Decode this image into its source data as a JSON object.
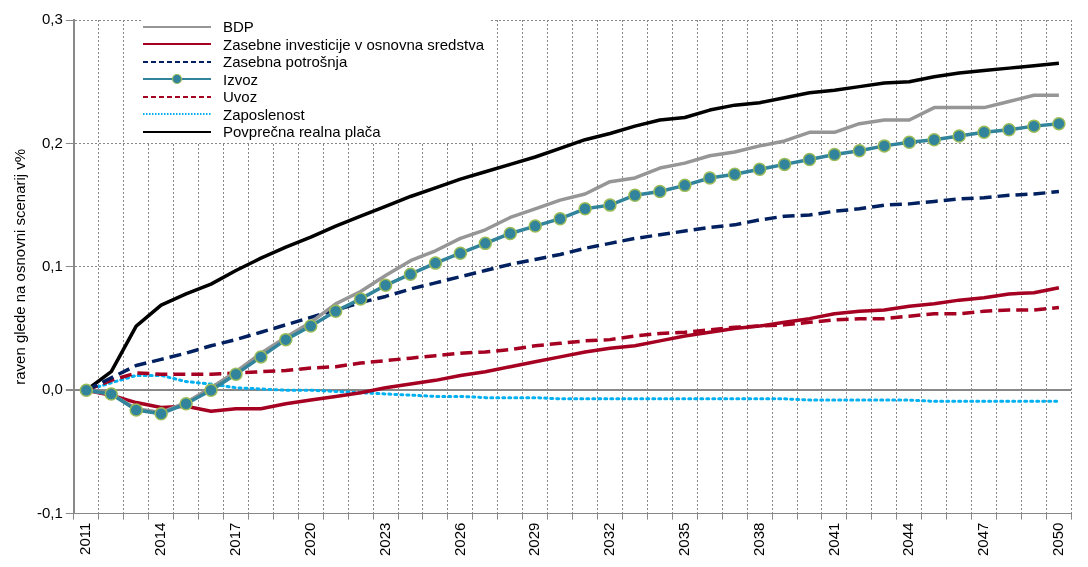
{
  "chart_data": {
    "type": "line",
    "ylabel": "raven glede na osnovni scenarij v%",
    "categories": [
      "2011",
      null,
      null,
      "2014",
      null,
      null,
      "2017",
      null,
      null,
      "2020",
      null,
      null,
      "2023",
      null,
      null,
      "2026",
      null,
      null,
      "2029",
      null,
      null,
      "2032",
      null,
      null,
      "2035",
      null,
      null,
      "2038",
      null,
      null,
      "2041",
      null,
      null,
      "2044",
      null,
      null,
      "2047",
      null,
      null,
      "2050"
    ],
    "ylim": [
      -0.1,
      0.3
    ],
    "yticks": [
      {
        "value": -0.1,
        "label": "-0,1"
      },
      {
        "value": 0,
        "label": "0,0"
      },
      {
        "value": 0.1,
        "label": "0,1"
      },
      {
        "value": 0.2,
        "label": "0,2"
      },
      {
        "value": 0.3,
        "label": "0,3"
      }
    ],
    "grid": true,
    "legend": "top left",
    "marker": "none",
    "line_style": "solid",
    "series": [
      {
        "name": "BDP",
        "color": "#969696",
        "values": [
          0,
          -0.003,
          -0.015,
          -0.018,
          -0.01,
          0.002,
          0.015,
          0.03,
          0.043,
          0.055,
          0.07,
          0.08,
          0.093,
          0.105,
          0.113,
          0.123,
          0.13,
          0.14,
          0.147,
          0.154,
          0.159,
          0.169,
          0.172,
          0.18,
          0.184,
          0.19,
          0.193,
          0.198,
          0.202,
          0.209,
          0.209,
          0.216,
          0.219,
          0.219,
          0.229,
          0.229,
          0.229,
          0.234,
          0.239,
          0.239
        ]
      },
      {
        "name": "Zasebne investicije v osnovna sredstva",
        "color": "#a50021",
        "values": [
          0,
          -0.004,
          -0.01,
          -0.014,
          -0.013,
          -0.017,
          -0.015,
          -0.015,
          -0.011,
          -0.008,
          -0.005,
          -0.002,
          0.002,
          0.005,
          0.008,
          0.012,
          0.015,
          0.019,
          0.023,
          0.027,
          0.031,
          0.034,
          0.036,
          0.04,
          0.044,
          0.047,
          0.05,
          0.052,
          0.055,
          0.058,
          0.062,
          0.064,
          0.065,
          0.068,
          0.07,
          0.073,
          0.075,
          0.078,
          0.079,
          0.083
        ]
      },
      {
        "name": "Zasebna potrošnja",
        "color": "#002060",
        "line_style": "dashed",
        "values": [
          0,
          0.01,
          0.02,
          0.025,
          0.03,
          0.036,
          0.041,
          0.047,
          0.053,
          0.059,
          0.065,
          0.071,
          0.076,
          0.082,
          0.087,
          0.092,
          0.097,
          0.102,
          0.106,
          0.11,
          0.115,
          0.119,
          0.123,
          0.126,
          0.129,
          0.132,
          0.134,
          0.138,
          0.141,
          0.142,
          0.145,
          0.147,
          0.15,
          0.151,
          0.153,
          0.155,
          0.156,
          0.158,
          0.159,
          0.161
        ]
      },
      {
        "name": "Izvoz",
        "color": "#31849b",
        "marker": "circle",
        "values": [
          0,
          -0.003,
          -0.016,
          -0.019,
          -0.011,
          0,
          0.013,
          0.027,
          0.041,
          0.052,
          0.064,
          0.074,
          0.085,
          0.094,
          0.103,
          0.111,
          0.119,
          0.127,
          0.133,
          0.139,
          0.147,
          0.15,
          0.158,
          0.161,
          0.166,
          0.172,
          0.175,
          0.179,
          0.183,
          0.187,
          0.191,
          0.194,
          0.198,
          0.201,
          0.203,
          0.206,
          0.209,
          0.211,
          0.214,
          0.216
        ]
      },
      {
        "name": "Uvoz",
        "color": "#a50021",
        "line_style": "dashed",
        "values": [
          0,
          0.008,
          0.014,
          0.013,
          0.013,
          0.013,
          0.014,
          0.015,
          0.016,
          0.018,
          0.019,
          0.022,
          0.024,
          0.026,
          0.028,
          0.03,
          0.031,
          0.033,
          0.036,
          0.038,
          0.04,
          0.041,
          0.044,
          0.046,
          0.047,
          0.049,
          0.051,
          0.052,
          0.053,
          0.055,
          0.057,
          0.058,
          0.058,
          0.06,
          0.062,
          0.062,
          0.064,
          0.065,
          0.065,
          0.067
        ]
      },
      {
        "name": "Zaposlenost",
        "color": "#00b0f0",
        "line_style": "dotted",
        "values": [
          0,
          0.006,
          0.012,
          0.012,
          0.007,
          0.005,
          0.002,
          0.001,
          0,
          0,
          -0.001,
          -0.002,
          -0.003,
          -0.004,
          -0.005,
          -0.005,
          -0.006,
          -0.006,
          -0.006,
          -0.007,
          -0.007,
          -0.007,
          -0.007,
          -0.007,
          -0.007,
          -0.007,
          -0.007,
          -0.007,
          -0.007,
          -0.008,
          -0.008,
          -0.008,
          -0.008,
          -0.008,
          -0.009,
          -0.009,
          -0.009,
          -0.009,
          -0.009,
          -0.009
        ]
      },
      {
        "name": "Povprečna realna plača",
        "color": "#000000",
        "values": [
          0,
          0.015,
          0.052,
          0.069,
          0.078,
          0.086,
          0.097,
          0.107,
          0.116,
          0.124,
          0.133,
          0.141,
          0.149,
          0.157,
          0.164,
          0.171,
          0.177,
          0.183,
          0.189,
          0.196,
          0.203,
          0.208,
          0.214,
          0.219,
          0.221,
          0.227,
          0.231,
          0.233,
          0.237,
          0.241,
          0.243,
          0.246,
          0.249,
          0.25,
          0.254,
          0.257,
          0.259,
          0.261,
          0.263,
          0.265
        ]
      }
    ]
  }
}
